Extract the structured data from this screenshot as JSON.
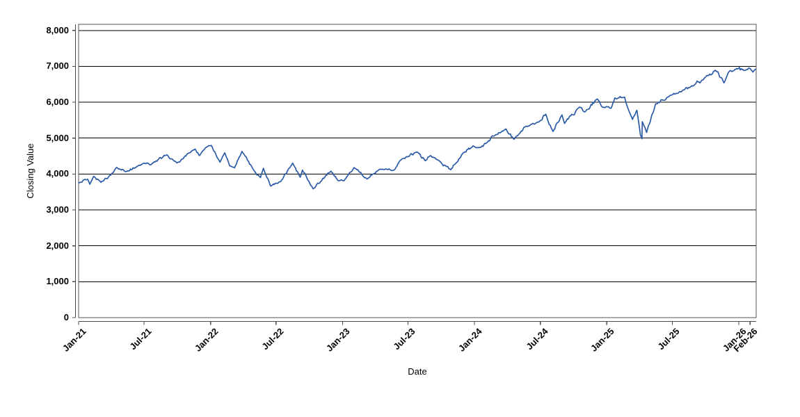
{
  "chart_data": {
    "type": "line",
    "title": "",
    "xlabel": "Date",
    "ylabel": "Closing Value",
    "grid": "horizontal",
    "legend": "none",
    "ylim": [
      0,
      8170
    ],
    "y_ticks": [
      0,
      1000,
      2000,
      3000,
      4000,
      5000,
      6000,
      7000,
      8000
    ],
    "y_tick_labels": [
      "0",
      "1,000",
      "2,000",
      "3,000",
      "4,000",
      "5,000",
      "6,000",
      "7,000",
      "8,000"
    ],
    "x_range": [
      "2021-01-01",
      "2026-02-18"
    ],
    "x_ticks": [
      {
        "label": "Jan-21",
        "date": "2021-01-01"
      },
      {
        "label": "Jul-21",
        "date": "2021-07-01"
      },
      {
        "label": "Jan-22",
        "date": "2022-01-01"
      },
      {
        "label": "Jul-22",
        "date": "2022-07-01"
      },
      {
        "label": "Jan-23",
        "date": "2023-01-01"
      },
      {
        "label": "Jul-23",
        "date": "2023-07-01"
      },
      {
        "label": "Jan-24",
        "date": "2024-01-01"
      },
      {
        "label": "Jul-24",
        "date": "2024-07-01"
      },
      {
        "label": "Jan-25",
        "date": "2025-01-01"
      },
      {
        "label": "Jul-25",
        "date": "2025-07-01"
      },
      {
        "label": "Jan-26",
        "date": "2026-01-01"
      },
      {
        "label": "Feb-26",
        "date": "2026-02-01"
      }
    ],
    "series": [
      {
        "name": "Closing Value",
        "color": "#2b5ba6",
        "points": [
          [
            "2021-01-01",
            3756
          ],
          [
            "2021-01-26",
            3855
          ],
          [
            "2021-02-01",
            3714
          ],
          [
            "2021-02-12",
            3935
          ],
          [
            "2021-03-04",
            3770
          ],
          [
            "2021-03-31",
            3973
          ],
          [
            "2021-04-16",
            4185
          ],
          [
            "2021-05-12",
            4065
          ],
          [
            "2021-06-30",
            4298
          ],
          [
            "2021-07-19",
            4258
          ],
          [
            "2021-09-02",
            4537
          ],
          [
            "2021-09-30",
            4307
          ],
          [
            "2021-11-19",
            4698
          ],
          [
            "2021-12-01",
            4513
          ],
          [
            "2021-12-27",
            4791
          ],
          [
            "2022-01-03",
            4797
          ],
          [
            "2022-01-27",
            4330
          ],
          [
            "2022-02-09",
            4590
          ],
          [
            "2022-02-23",
            4225
          ],
          [
            "2022-03-08",
            4170
          ],
          [
            "2022-03-29",
            4630
          ],
          [
            "2022-04-29",
            4130
          ],
          [
            "2022-05-19",
            3900
          ],
          [
            "2022-05-27",
            4160
          ],
          [
            "2022-06-16",
            3665
          ],
          [
            "2022-07-14",
            3790
          ],
          [
            "2022-08-16",
            4305
          ],
          [
            "2022-09-06",
            3910
          ],
          [
            "2022-09-12",
            4110
          ],
          [
            "2022-10-12",
            3585
          ],
          [
            "2022-11-30",
            4080
          ],
          [
            "2022-12-19",
            3820
          ],
          [
            "2023-01-05",
            3810
          ],
          [
            "2023-02-02",
            4180
          ],
          [
            "2023-03-10",
            3860
          ],
          [
            "2023-04-14",
            4135
          ],
          [
            "2023-05-24",
            4115
          ],
          [
            "2023-06-15",
            4425
          ],
          [
            "2023-07-27",
            4607
          ],
          [
            "2023-08-18",
            4370
          ],
          [
            "2023-09-01",
            4515
          ],
          [
            "2023-10-27",
            4117
          ],
          [
            "2023-12-01",
            4595
          ],
          [
            "2023-12-28",
            4783
          ],
          [
            "2024-01-17",
            4740
          ],
          [
            "2024-02-29",
            5096
          ],
          [
            "2024-03-28",
            5254
          ],
          [
            "2024-04-19",
            4967
          ],
          [
            "2024-05-21",
            5321
          ],
          [
            "2024-06-28",
            5460
          ],
          [
            "2024-07-16",
            5667
          ],
          [
            "2024-08-05",
            5186
          ],
          [
            "2024-08-30",
            5648
          ],
          [
            "2024-09-06",
            5408
          ],
          [
            "2024-10-18",
            5865
          ],
          [
            "2024-11-01",
            5729
          ],
          [
            "2024-12-06",
            6090
          ],
          [
            "2024-12-19",
            5867
          ],
          [
            "2025-01-13",
            5836
          ],
          [
            "2025-01-23",
            6119
          ],
          [
            "2025-02-19",
            6144
          ],
          [
            "2025-02-27",
            5862
          ],
          [
            "2025-03-13",
            5522
          ],
          [
            "2025-03-25",
            5777
          ],
          [
            "2025-04-04",
            5074
          ],
          [
            "2025-04-08",
            4983
          ],
          [
            "2025-04-09",
            5457
          ],
          [
            "2025-04-21",
            5158
          ],
          [
            "2025-05-16",
            5958
          ],
          [
            "2025-06-30",
            6205
          ],
          [
            "2025-07-31",
            6340
          ],
          [
            "2025-08-29",
            6460
          ],
          [
            "2025-09-30",
            6688
          ],
          [
            "2025-10-28",
            6891
          ],
          [
            "2025-11-21",
            6538
          ],
          [
            "2025-12-05",
            6850
          ],
          [
            "2025-12-26",
            6940
          ],
          [
            "2026-01-15",
            6885
          ],
          [
            "2026-01-30",
            6950
          ],
          [
            "2026-02-09",
            6840
          ],
          [
            "2026-02-16",
            6920
          ]
        ]
      }
    ]
  },
  "colors": {
    "line": "#2b5ba6",
    "gridline": "#000000",
    "plot_border": "#545454",
    "axis": "#4a4a4a",
    "background": "#ffffff",
    "text": "#000000"
  }
}
